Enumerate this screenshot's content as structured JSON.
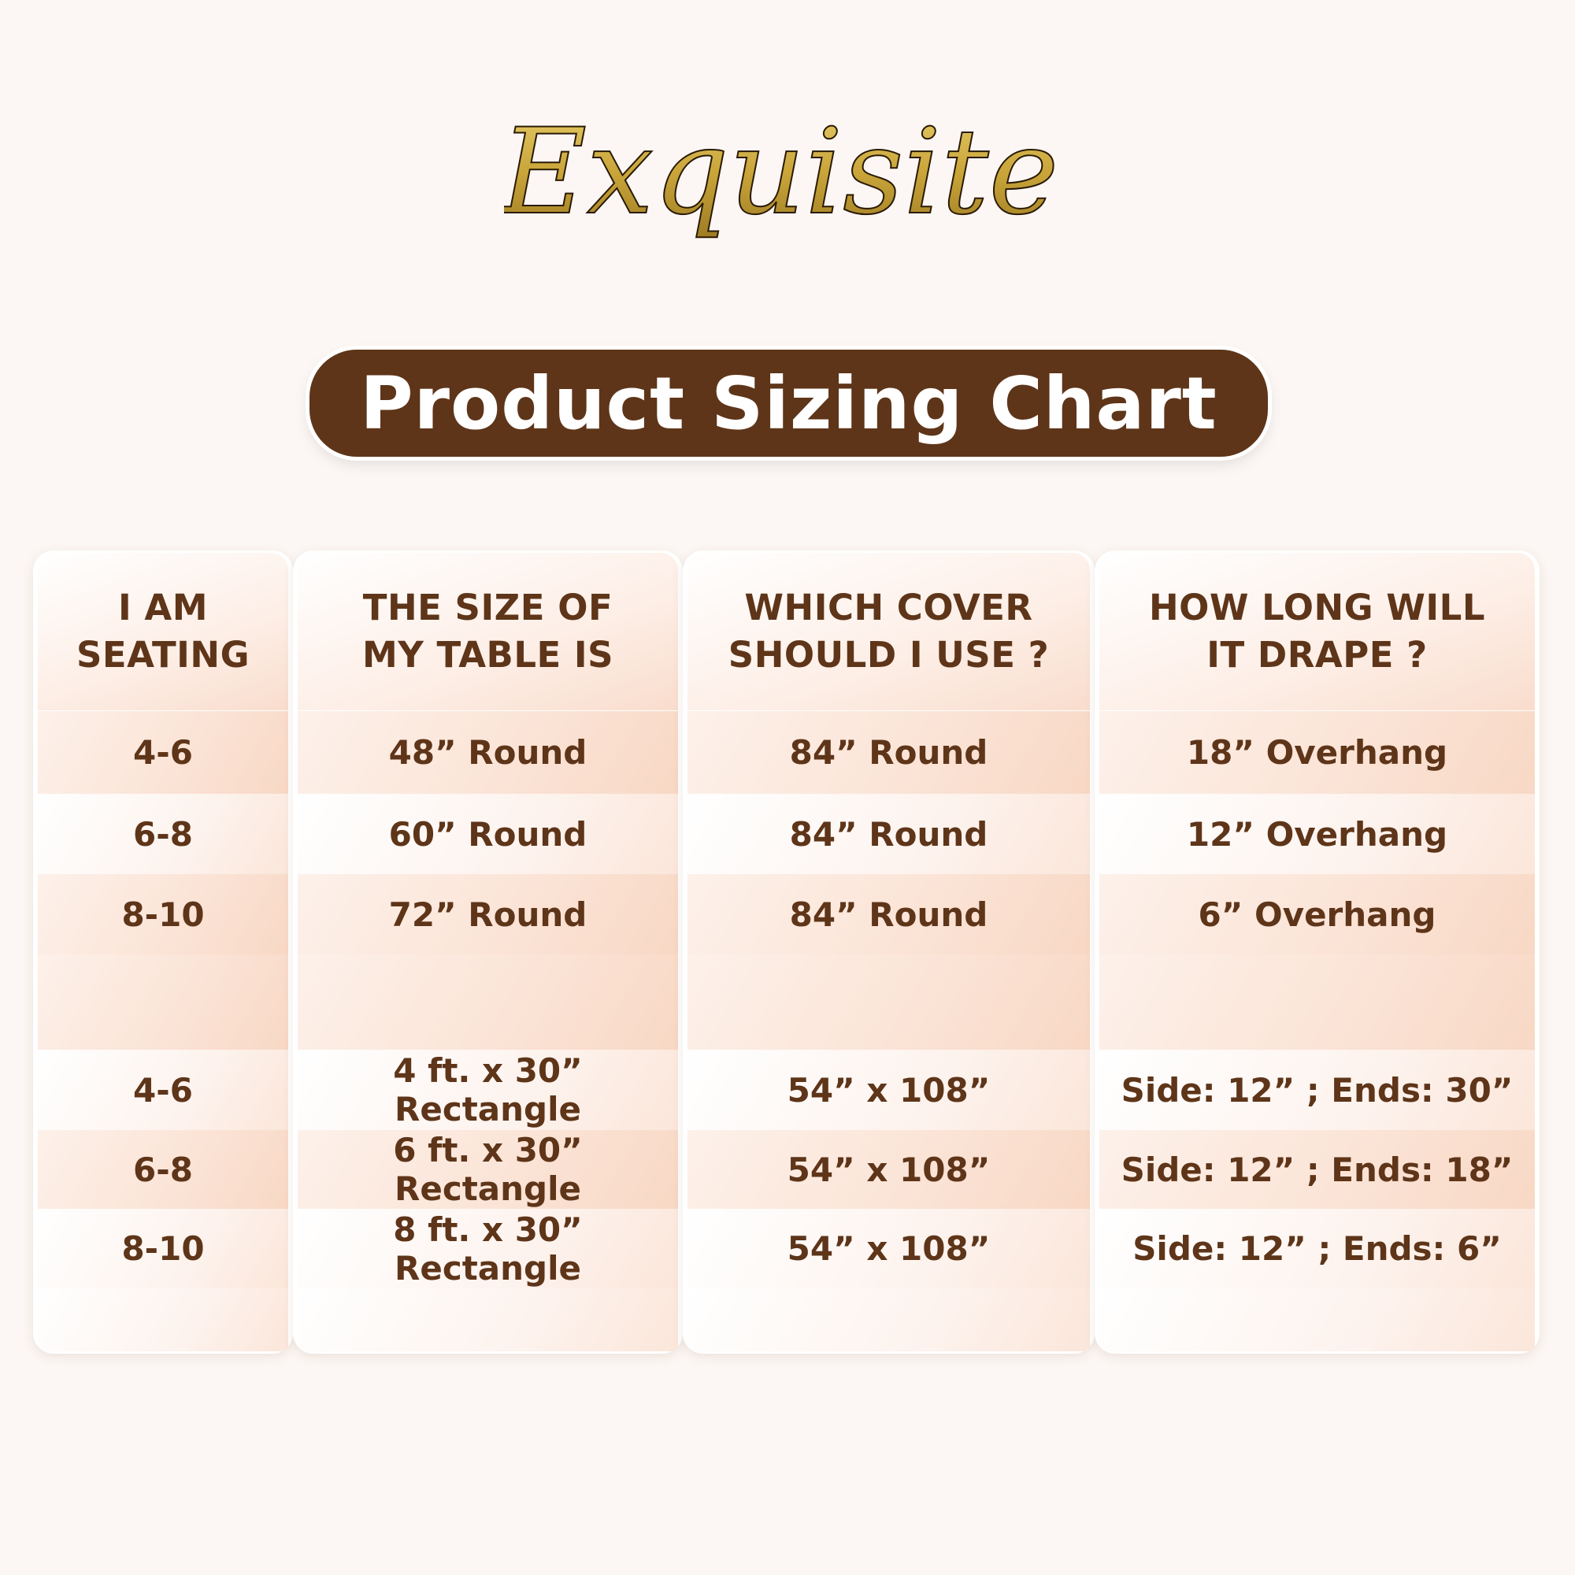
{
  "brand": {
    "logo_text": "Exquisite",
    "gold": "#c9a53a"
  },
  "title": "Product Sizing Chart",
  "colors": {
    "brown": "#5e3519",
    "peach": "#f9ddcd"
  },
  "table": {
    "headers": [
      [
        "I AM",
        "SEATING"
      ],
      [
        "THE SIZE OF",
        "MY TABLE IS"
      ],
      [
        "WHICH COVER",
        "SHOULD I USE ?"
      ],
      [
        "HOW LONG WILL",
        "IT DRAPE ?"
      ]
    ],
    "round_rows": [
      [
        "4-6",
        "48” Round",
        "84” Round",
        "18” Overhang"
      ],
      [
        "6-8",
        "60” Round",
        "84” Round",
        "12” Overhang"
      ],
      [
        "8-10",
        "72” Round",
        "84” Round",
        "6” Overhang"
      ]
    ],
    "rect_rows": [
      [
        "4-6",
        "4 ft. x 30” Rectangle",
        "54” x 108”",
        "Side: 12” ; Ends: 30”"
      ],
      [
        "6-8",
        "6 ft. x 30” Rectangle",
        "54” x 108”",
        "Side: 12” ; Ends: 18”"
      ],
      [
        "8-10",
        "8 ft. x 30” Rectangle",
        "54” x 108”",
        "Side: 12” ; Ends: 6”"
      ]
    ]
  }
}
